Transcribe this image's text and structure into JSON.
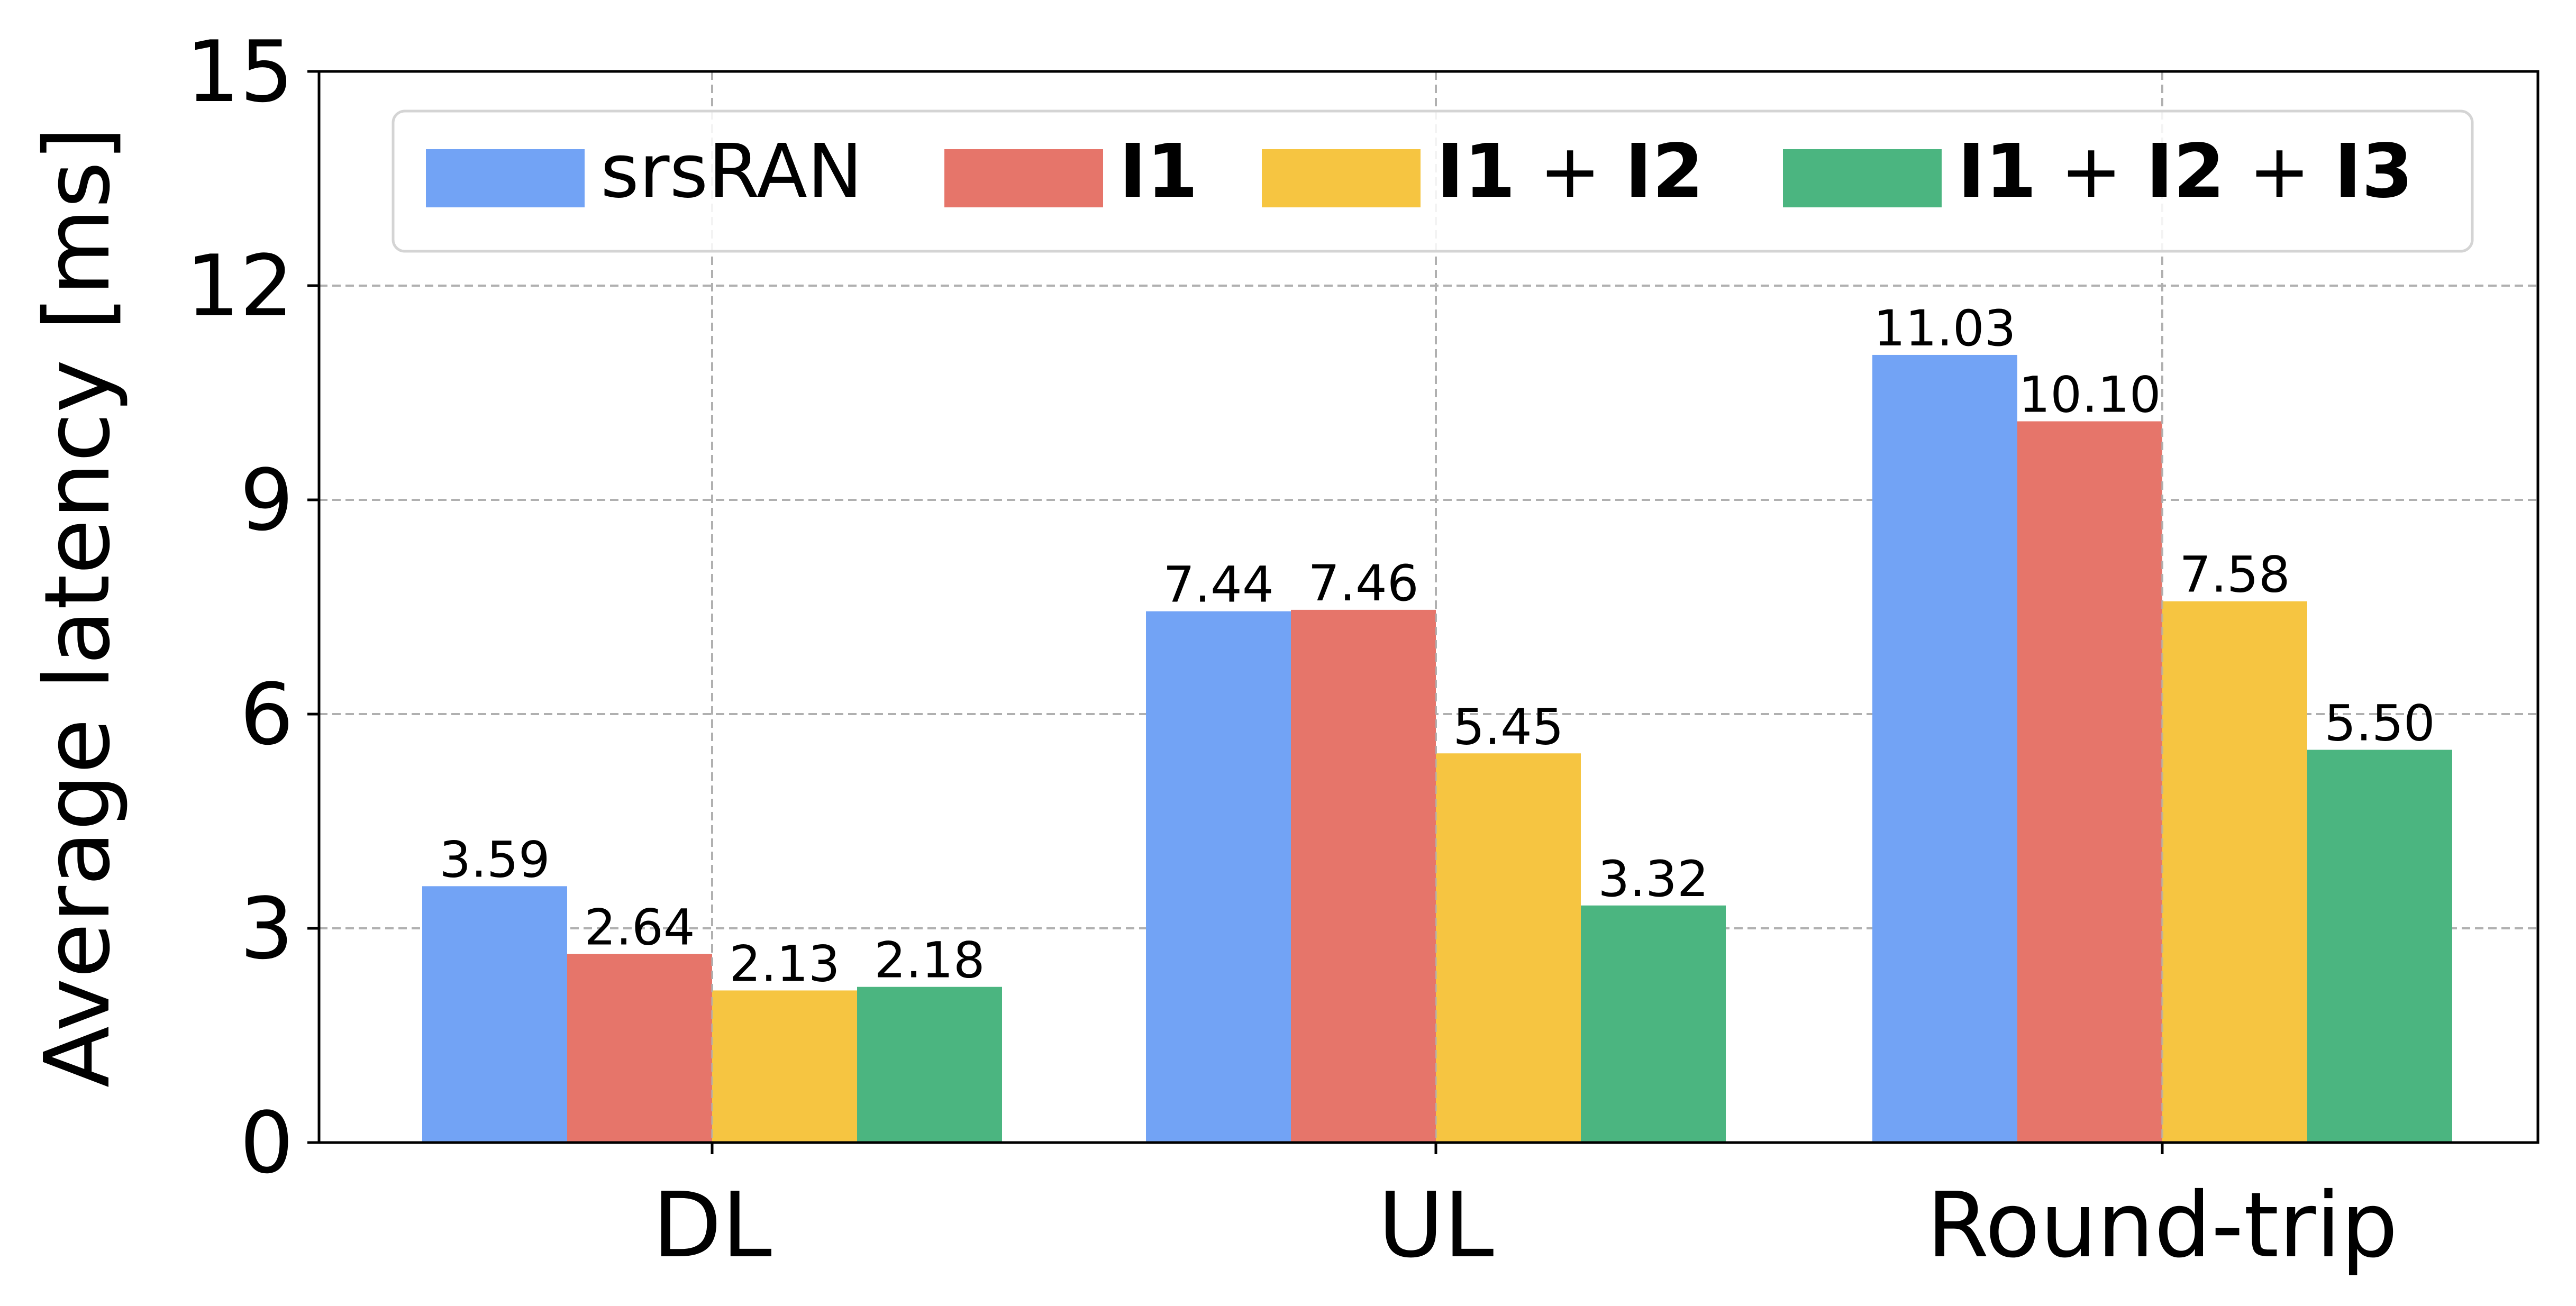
{
  "chart_data": {
    "type": "bar",
    "title": "",
    "xlabel": "",
    "ylabel": "Average latency [ms]",
    "ylim": [
      0,
      15
    ],
    "yticks": [
      "0",
      "3",
      "6",
      "9",
      "12",
      "15"
    ],
    "categories": [
      "DL",
      "UL",
      "Round-trip"
    ],
    "series": [
      {
        "name": "srsRAN",
        "color": "#72a3f5",
        "values": [
          3.59,
          7.44,
          11.03
        ],
        "labels": [
          "3.59",
          "7.44",
          "11.03"
        ]
      },
      {
        "name": "I1",
        "color": "#e6756a",
        "values": [
          2.64,
          7.46,
          10.1
        ],
        "labels": [
          "2.64",
          "7.46",
          "10.10"
        ]
      },
      {
        "name": "I1 + I2",
        "color": "#f6c541",
        "values": [
          2.13,
          5.45,
          7.58
        ],
        "labels": [
          "2.13",
          "5.45",
          "7.58"
        ]
      },
      {
        "name": "I1 + I2 + I3",
        "color": "#4bb580",
        "values": [
          2.18,
          3.32,
          5.5
        ],
        "labels": [
          "2.18",
          "3.32",
          "5.50"
        ]
      }
    ],
    "legend": {
      "placement": "top",
      "entries": [
        [
          {
            "text": "srsRAN",
            "bold": false
          }
        ],
        [
          {
            "text": "I1",
            "bold": true
          }
        ],
        [
          {
            "text": "I1",
            "bold": true
          },
          {
            "text": " + ",
            "bold": false
          },
          {
            "text": "I2",
            "bold": true
          }
        ],
        [
          {
            "text": "I1",
            "bold": true
          },
          {
            "text": " + ",
            "bold": false
          },
          {
            "text": "I2",
            "bold": true
          },
          {
            "text": " + ",
            "bold": false
          },
          {
            "text": "I3",
            "bold": true
          }
        ]
      ]
    },
    "grid": true
  }
}
